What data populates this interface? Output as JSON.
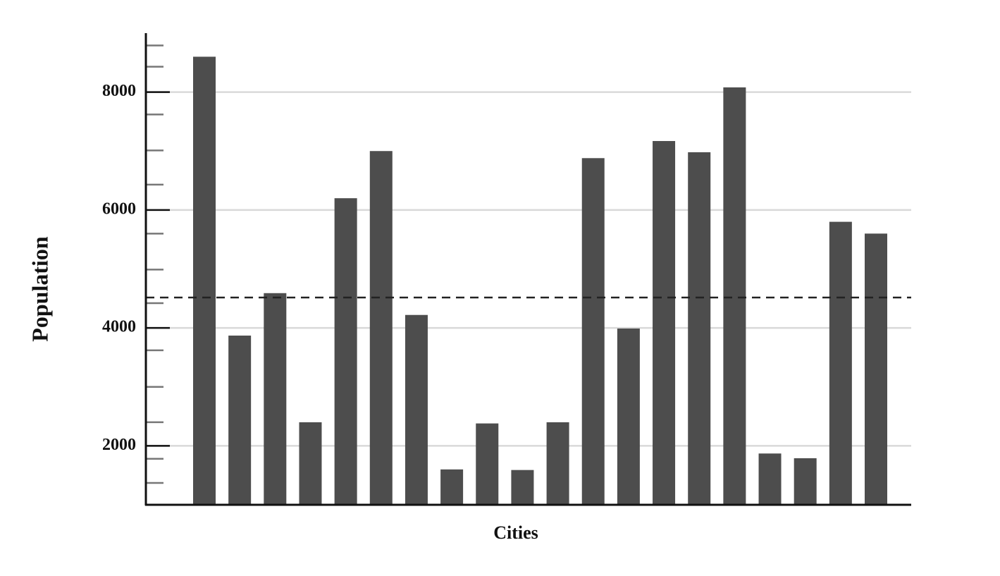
{
  "chart_data": {
    "type": "bar",
    "x_label": "Cities",
    "y_label": "Population",
    "categories": [
      null,
      null,
      null,
      null,
      null,
      null,
      null,
      null,
      null,
      null,
      null,
      null,
      null,
      null,
      null,
      null,
      null,
      null,
      null,
      null
    ],
    "values": [
      8600,
      3870,
      4590,
      2400,
      6200,
      7000,
      4220,
      1600,
      2380,
      1590,
      2400,
      6880,
      3990,
      7170,
      6980,
      8080,
      1870,
      1790,
      5800,
      5600
    ],
    "color": "#4d4d4d",
    "ylim": [
      1000,
      9000
    ],
    "yticks": [
      2000,
      4000,
      6000,
      8000
    ],
    "minor_yticks": [
      1370,
      1780,
      2400,
      3000,
      3620,
      4420,
      4990,
      5600,
      6430,
      7010,
      7620,
      8430,
      8790
    ],
    "reference_line": 4515,
    "grid": true
  }
}
